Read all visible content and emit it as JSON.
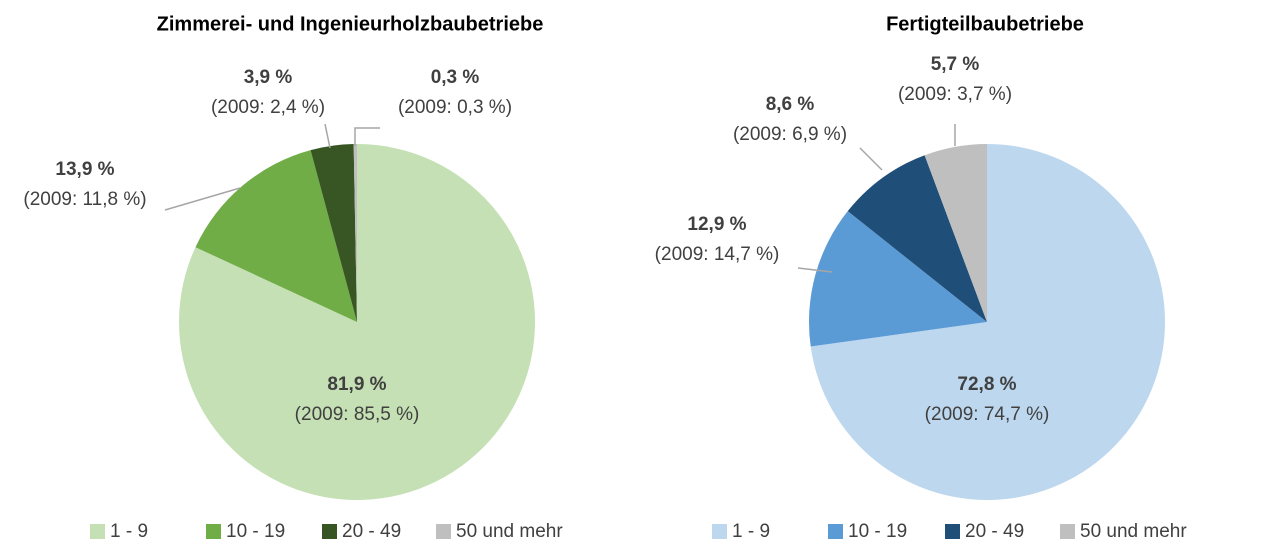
{
  "chart_data": [
    {
      "type": "pie",
      "title": "Zimmerei- und Ingenieurholzbaubetriebe",
      "categories": [
        "1 - 9",
        "10 - 19",
        "20 - 49",
        "50 und mehr"
      ],
      "values": [
        81.9,
        13.9,
        3.9,
        0.3
      ],
      "value_labels": [
        "81,9 %",
        "13,9 %",
        "3,9 %",
        "0,3 %"
      ],
      "annotations": [
        "(2009: 85,5 %)",
        "(2009: 11,8 %)",
        "(2009: 2,4 %)",
        "(2009: 0,3 %)"
      ],
      "colors": [
        "#c5e0b4",
        "#70ad47",
        "#375623",
        "#bfbfbf"
      ],
      "legend": "bottom"
    },
    {
      "type": "pie",
      "title": "Fertigteilbaubetriebe",
      "categories": [
        "1 - 9",
        "10 - 19",
        "20 - 49",
        "50 und mehr"
      ],
      "values": [
        72.8,
        12.9,
        8.6,
        5.7
      ],
      "value_labels": [
        "72,8 %",
        "12,9 %",
        "8,6 %",
        "5,7 %"
      ],
      "annotations": [
        "(2009: 74,7 %)",
        "(2009: 14,7 %)",
        "(2009: 6,9 %)",
        "(2009: 3,7 %)"
      ],
      "colors": [
        "#bdd7ee",
        "#5b9bd5",
        "#1f4e79",
        "#bfbfbf"
      ],
      "legend": "bottom"
    }
  ]
}
